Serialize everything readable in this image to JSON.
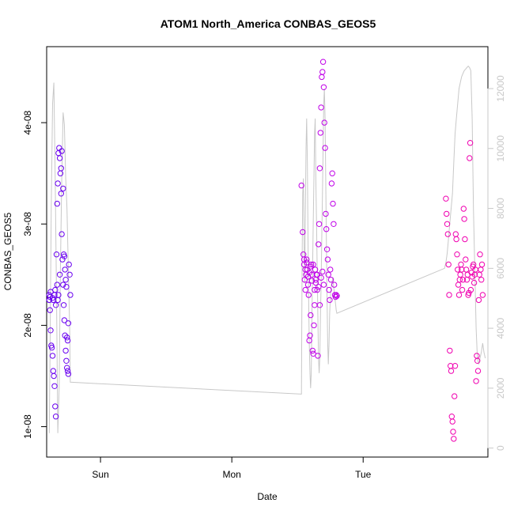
{
  "chart_data": {
    "type": "scatter",
    "title": "ATOM1 North_America CONBAS_GEOS5",
    "xlabel": "Date",
    "ylabel": "CONBAS_GEOS5",
    "x_tick_labels": [
      "Sun",
      "Mon",
      "Tue"
    ],
    "y_tick_labels": [
      "1e-08",
      "2e-08",
      "3e-08",
      "4e-08"
    ],
    "y_ticks": [
      1e-08,
      2e-08,
      3e-08,
      4e-08
    ],
    "y2_tick_labels": [
      "0",
      "2000",
      "4000",
      "6000",
      "8000",
      "10000",
      "12000"
    ],
    "y2_ticks": [
      0,
      2000,
      4000,
      6000,
      8000,
      10000,
      12000
    ],
    "xlim_days": [
      -0.41,
      2.95
    ],
    "ylim": [
      7e-09,
      4.75e-08
    ],
    "y2lim": [
      -300,
      13400
    ],
    "grid": false,
    "colors": {
      "sun_points": "#6a00f0",
      "tue_points": "#c000e8",
      "wed_points": "#f000b0",
      "altitude_line": "#c8c8c8"
    },
    "series": [
      {
        "x": [
          -0.39,
          -0.39,
          -0.385,
          -0.38,
          -0.375,
          -0.37,
          -0.365,
          -0.36,
          -0.355,
          -0.35,
          -0.345,
          -0.34,
          -0.335,
          -0.33,
          -0.325,
          -0.32,
          -0.315,
          -0.31,
          -0.305,
          -0.3,
          -0.295,
          -0.29,
          -0.285,
          -0.28,
          -0.275,
          -0.27,
          -0.265,
          -0.26,
          -0.255,
          -0.25,
          -0.245,
          -0.24,
          -0.235,
          -0.23,
          -0.39,
          -0.385,
          -0.38,
          -0.365,
          -0.36,
          -0.35,
          -0.345,
          -0.34,
          -0.33,
          -0.325,
          -0.32,
          -0.31,
          -0.3,
          -0.295,
          -0.285,
          -0.28,
          -0.275,
          -0.27,
          -0.265,
          -0.26,
          -0.255,
          -0.25,
          -0.245
        ],
        "values": [
          2.25e-08,
          2.3e-08,
          2.15e-08,
          1.95e-08,
          1.8e-08,
          1.78e-08,
          1.7e-08,
          1.55e-08,
          1.5e-08,
          1.4e-08,
          1.2e-08,
          1.1e-08,
          2.7e-08,
          3.2e-08,
          3.4e-08,
          3.7e-08,
          3.75e-08,
          3.65e-08,
          3.5e-08,
          3.3e-08,
          2.9e-08,
          2.65e-08,
          2.4e-08,
          2.2e-08,
          2.05e-08,
          1.9e-08,
          1.75e-08,
          1.65e-08,
          1.58e-08,
          1.55e-08,
          1.52e-08,
          2.6e-08,
          2.5e-08,
          2.3e-08,
          2.25e-08,
          2.28e-08,
          2.33e-08,
          2.27e-08,
          2.25e-08,
          2.3e-08,
          2.35e-08,
          2.2e-08,
          2.4e-08,
          2.25e-08,
          2.3e-08,
          2.5e-08,
          3.55e-08,
          3.72e-08,
          3.35e-08,
          2.7e-08,
          2.68e-08,
          2.55e-08,
          2.45e-08,
          2.38e-08,
          1.88e-08,
          1.85e-08,
          2.02e-08
        ],
        "group": "sun_points"
      },
      {
        "x": [
          1.53,
          1.54,
          1.545,
          1.55,
          1.555,
          1.56,
          1.565,
          1.57,
          1.575,
          1.58,
          1.585,
          1.59,
          1.595,
          1.6,
          1.605,
          1.61,
          1.615,
          1.62,
          1.625,
          1.63,
          1.635,
          1.64,
          1.645,
          1.65,
          1.655,
          1.66,
          1.665,
          1.67,
          1.675,
          1.68,
          1.685,
          1.69,
          1.695,
          1.7,
          1.705,
          1.71,
          1.715,
          1.72,
          1.725,
          1.73,
          1.735,
          1.74,
          1.745,
          1.75,
          1.755,
          1.76,
          1.765,
          1.77,
          1.775,
          1.78,
          1.785,
          1.79,
          1.795,
          1.8,
          1.55,
          1.56,
          1.57,
          1.58,
          1.59,
          1.6,
          1.61,
          1.62,
          1.63,
          1.64,
          1.65,
          1.66,
          1.67,
          1.68,
          1.69,
          1.7
        ],
        "values": [
          3.38e-08,
          2.92e-08,
          2.7e-08,
          2.6e-08,
          2.45e-08,
          2.35e-08,
          2.5e-08,
          2.65e-08,
          2.55e-08,
          2.4e-08,
          2.3e-08,
          1.85e-08,
          1.9e-08,
          2.1e-08,
          2.6e-08,
          2.5e-08,
          1.75e-08,
          1.72e-08,
          2e-08,
          2.2e-08,
          2.55e-08,
          2.45e-08,
          2.5e-08,
          2.35e-08,
          1.7e-08,
          2.8e-08,
          3e-08,
          3.55e-08,
          3.9e-08,
          4.15e-08,
          4.45e-08,
          4.5e-08,
          4.6e-08,
          4.35e-08,
          4e-08,
          3.75e-08,
          3.1e-08,
          2.95e-08,
          2.75e-08,
          2.65e-08,
          2.5e-08,
          2.35e-08,
          2.25e-08,
          2.55e-08,
          2.45e-08,
          3.4e-08,
          3.5e-08,
          3.2e-08,
          3e-08,
          2.4e-08,
          2.3e-08,
          2.28e-08,
          2.3e-08,
          2.29e-08,
          2.65e-08,
          2.55e-08,
          2.62e-08,
          2.48e-08,
          2.52e-08,
          2.58e-08,
          2.44e-08,
          2.6e-08,
          2.35e-08,
          2.42e-08,
          2.5e-08,
          2.38e-08,
          2.2e-08,
          2.47e-08,
          2.53e-08,
          2.4e-08
        ],
        "group": "tue_points"
      },
      {
        "x": [
          2.63,
          2.635,
          2.64,
          2.645,
          2.65,
          2.655,
          2.66,
          2.665,
          2.67,
          2.675,
          2.68,
          2.685,
          2.69,
          2.695,
          2.7,
          2.705,
          2.71,
          2.715,
          2.72,
          2.725,
          2.73,
          2.735,
          2.74,
          2.745,
          2.75,
          2.755,
          2.76,
          2.765,
          2.77,
          2.775,
          2.78,
          2.785,
          2.79,
          2.795,
          2.8,
          2.805,
          2.81,
          2.815,
          2.82,
          2.825,
          2.83,
          2.835,
          2.84,
          2.845,
          2.85,
          2.855,
          2.86,
          2.865,
          2.87,
          2.875,
          2.88,
          2.885,
          2.89,
          2.895,
          2.9,
          2.905,
          2.91
        ],
        "values": [
          3.25e-08,
          3.1e-08,
          3e-08,
          2.9e-08,
          2.6e-08,
          2.3e-08,
          1.75e-08,
          1.6e-08,
          1.55e-08,
          1.1e-08,
          1.05e-08,
          9.5e-09,
          8.8e-09,
          1.3e-08,
          1.6e-08,
          2.9e-08,
          2.85e-08,
          2.7e-08,
          2.55e-08,
          2.4e-08,
          2.3e-08,
          2.45e-08,
          2.5e-08,
          2.6e-08,
          2.55e-08,
          2.35e-08,
          2.45e-08,
          3.15e-08,
          3.05e-08,
          2.85e-08,
          2.65e-08,
          2.55e-08,
          2.45e-08,
          2.5e-08,
          2.3e-08,
          2.32e-08,
          3.65e-08,
          3.8e-08,
          2.35e-08,
          2.52e-08,
          2.48e-08,
          2.58e-08,
          2.6e-08,
          2.42e-08,
          2.5e-08,
          2.55e-08,
          1.45e-08,
          1.7e-08,
          1.65e-08,
          1.55e-08,
          2.25e-08,
          2.5e-08,
          2.7e-08,
          2.55e-08,
          2.45e-08,
          2.6e-08,
          2.3e-08
        ],
        "group": "wed_points"
      },
      {
        "type": "line",
        "axis": "y2",
        "x": [
          -0.39,
          -0.385,
          -0.375,
          -0.365,
          -0.355,
          -0.345,
          -0.335,
          -0.325,
          -0.315,
          -0.305,
          -0.295,
          -0.285,
          -0.275,
          -0.265,
          -0.255,
          -0.245,
          -0.235,
          -0.23,
          1.53,
          1.535,
          1.54,
          1.545,
          1.55,
          1.555,
          1.56,
          1.565,
          1.57,
          1.575,
          1.58,
          1.585,
          1.59,
          1.595,
          1.6,
          1.605,
          1.61,
          1.615,
          1.62,
          1.625,
          1.63,
          1.635,
          1.64,
          1.645,
          1.65,
          1.655,
          1.66,
          1.665,
          1.67,
          1.675,
          1.68,
          1.685,
          1.69,
          1.695,
          1.7,
          1.705,
          1.71,
          1.715,
          1.72,
          1.725,
          1.73,
          1.735,
          1.74,
          1.745,
          1.75,
          1.755,
          1.76,
          1.765,
          1.77,
          1.775,
          1.78,
          1.785,
          1.79,
          1.795,
          1.8,
          2.62,
          2.63,
          2.64,
          2.65,
          2.66,
          2.67,
          2.68,
          2.69,
          2.7,
          2.71,
          2.72,
          2.73,
          2.74,
          2.75,
          2.76,
          2.77,
          2.78,
          2.79,
          2.8,
          2.81,
          2.82,
          2.83,
          2.84,
          2.85,
          2.86,
          2.87,
          2.88,
          2.89,
          2.9,
          2.91,
          2.92,
          2.93
        ],
        "values": [
          500,
          3000,
          8000,
          11500,
          12200,
          9000,
          5000,
          500,
          2000,
          6000,
          9000,
          11200,
          10800,
          9000,
          8000,
          6000,
          4000,
          2200,
          1800,
          6000,
          8500,
          9000,
          7000,
          5500,
          8000,
          10000,
          11000,
          9500,
          7000,
          5000,
          3500,
          2500,
          2000,
          2500,
          4500,
          6000,
          7500,
          9000,
          10500,
          11000,
          9000,
          7500,
          6000,
          4500,
          3000,
          2500,
          3000,
          4500,
          5500,
          7000,
          8500,
          10000,
          11500,
          12000,
          11000,
          9000,
          7000,
          5000,
          3500,
          2800,
          3500,
          4500,
          5000,
          5300,
          5500,
          5600,
          5700,
          5400,
          5200,
          5000,
          4800,
          4600,
          4500,
          6000,
          6200,
          6500,
          7000,
          7500,
          8000,
          8500,
          9500,
          10500,
          11000,
          11500,
          12000,
          12200,
          12400,
          12500,
          12600,
          12650,
          12700,
          12750,
          12700,
          12600,
          11000,
          8000,
          6000,
          4000,
          3000,
          2800,
          3000,
          3200,
          3500,
          3200,
          3000
        ]
      }
    ]
  }
}
